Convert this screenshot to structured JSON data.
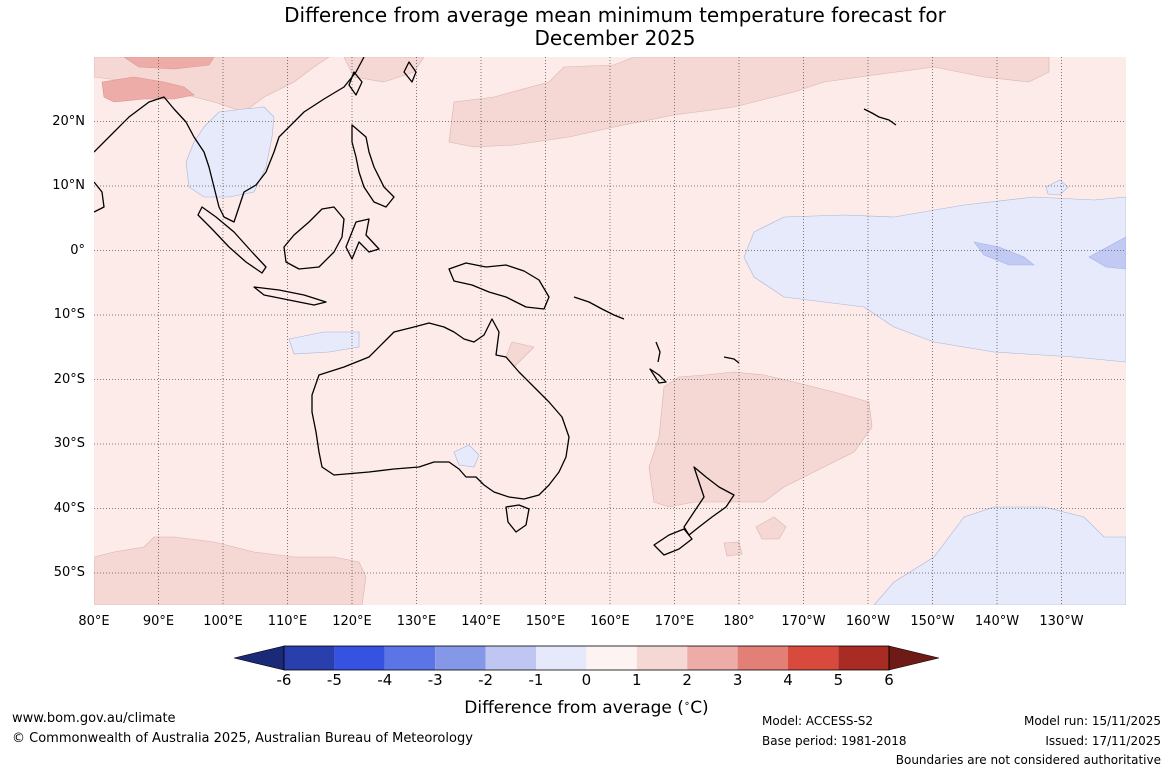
{
  "title": {
    "line1": "Difference from average mean minimum temperature forecast for",
    "line2": "December 2025"
  },
  "map": {
    "latitude_labels": [
      "20°N",
      "10°N",
      "0°",
      "10°S",
      "20°S",
      "30°S",
      "40°S",
      "50°S"
    ],
    "longitude_labels": [
      "80°E",
      "90°E",
      "100°E",
      "110°E",
      "120°E",
      "130°E",
      "140°E",
      "150°E",
      "160°E",
      "170°E",
      "180°",
      "170°W",
      "160°W",
      "150°W",
      "140°W",
      "130°W"
    ],
    "colors": {
      "ocean_base": "#fcebe9",
      "warm_1_2": "#f5d7d4",
      "warm_2_3": "#eeaca8",
      "cool_0_1": "#e6eafb",
      "cool_1_2": "#c2caf3",
      "coast": "#000000"
    }
  },
  "colorbar": {
    "ticks": [
      "-6",
      "-5",
      "-4",
      "-3",
      "-2",
      "-1",
      "0",
      "1",
      "2",
      "3",
      "4",
      "5",
      "6"
    ],
    "label": "Difference from average (",
    "label_unit": "C)",
    "degree_symbol": "∘",
    "colors": [
      "#1a2a78",
      "#2a3fae",
      "#3552e0",
      "#5b75e6",
      "#8598e8",
      "#bfc6f2",
      "#e6e9fb",
      "#fdf3f2",
      "#f5d7d4",
      "#eeaca8",
      "#e28078",
      "#d94a3e",
      "#a82b24",
      "#6e1a16"
    ]
  },
  "footer": {
    "website": "www.bom.gov.au/climate",
    "copyright": "© Commonwealth of Australia 2025, Australian Bureau of Meteorology",
    "model": "Model: ACCESS-S2",
    "base_period": "Base period: 1981-2018",
    "model_run": "Model run: 15/11/2025",
    "issued": "Issued: 17/11/2025",
    "disclaimer": "Boundaries are not considered authoritative"
  }
}
